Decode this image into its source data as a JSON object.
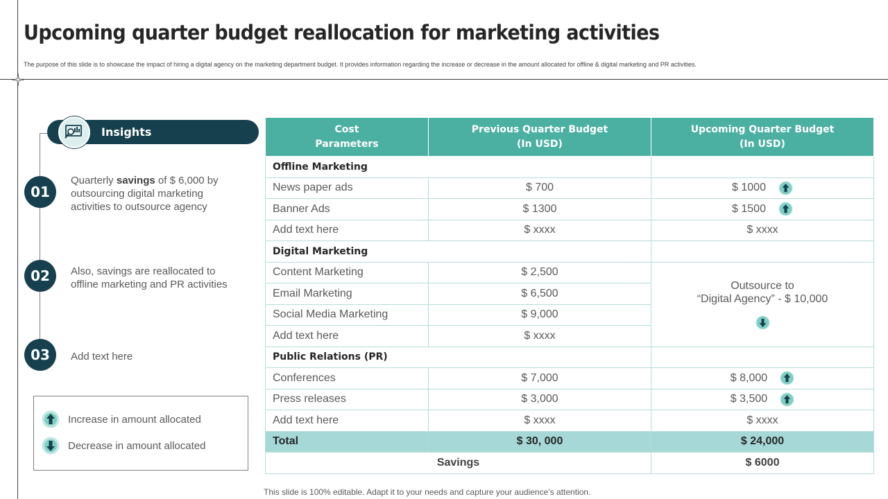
{
  "slide": {
    "title": "Upcoming quarter budget reallocation for marketing activities",
    "subtitle": "The purpose of this slide is to showcase the impact of hiring a digital agency on the marketing department budget. It provides information regarding the increase or decrease in the amount allocated for offline & digital marketing and PR activities.",
    "footer": "This slide is 100% editable. Adapt it to your needs and capture your audience’s attention."
  },
  "insights": {
    "header": "Insights",
    "items": [
      {
        "number": "01",
        "text_before": "Quarterly ",
        "bold": "savings",
        "text_after": " of $ 6,000 by outsourcing digital marketing activities to outsource agency"
      },
      {
        "number": "02",
        "text": "Also, savings are reallocated to offline marketing and PR activities"
      },
      {
        "number": "03",
        "text": "Add text here"
      }
    ]
  },
  "legend": {
    "increase": "Increase in amount allocated",
    "decrease": "Decrease in amount allocated"
  },
  "table": {
    "headers": {
      "cost_l1": "Cost",
      "cost_l2": "Parameters",
      "prev_l1": "Previous Quarter Budget",
      "prev_l2": "(In USD)",
      "up_l1": "Upcoming Quarter Budget",
      "up_l2": "(In USD)"
    },
    "offline": {
      "section": "Offline Marketing",
      "rows": [
        {
          "name": "News paper ads",
          "prev": "$ 700",
          "up": "$ 1000"
        },
        {
          "name": "Banner Ads",
          "prev": "$ 1300",
          "up": "$ 1500"
        },
        {
          "name": "Add text here",
          "prev": "$ xxxx",
          "up": "$ xxxx"
        }
      ]
    },
    "digital": {
      "section": "Digital Marketing",
      "rows": [
        {
          "name": "Content Marketing",
          "prev": "$ 2,500"
        },
        {
          "name": "Email Marketing",
          "prev": "$ 6,500"
        },
        {
          "name": "Social Media Marketing",
          "prev": "$ 9,000"
        },
        {
          "name": "Add text here",
          "prev": "$ xxxx"
        }
      ],
      "merged_l1": "Outsource to",
      "merged_l2": "“Digital Agency” - $ 10,000"
    },
    "pr": {
      "section": "Public Relations (PR)",
      "rows": [
        {
          "name": "Conferences",
          "prev": "$ 7,000",
          "up": "$ 8,000"
        },
        {
          "name": "Press releases",
          "prev": "$ 3,000",
          "up": "$ 3,500"
        },
        {
          "name": "Add text here",
          "prev": "$ xxxx",
          "up": "$ xxxx"
        }
      ]
    },
    "total": {
      "label": "Total",
      "prev": "$ 30, 000",
      "up": "$ 24,000"
    },
    "savings": {
      "label": "Savings",
      "value": "$ 6000"
    }
  },
  "icons": {
    "increase": "arrow-up-circle-icon",
    "decrease": "arrow-down-circle-icon",
    "insights": "analytics-monitor-icon"
  },
  "colors": {
    "navy": "#17404e",
    "teal": "#4bb0a2",
    "light_teal": "#a7d8d8",
    "icon_teal": "#7fcfc4"
  }
}
